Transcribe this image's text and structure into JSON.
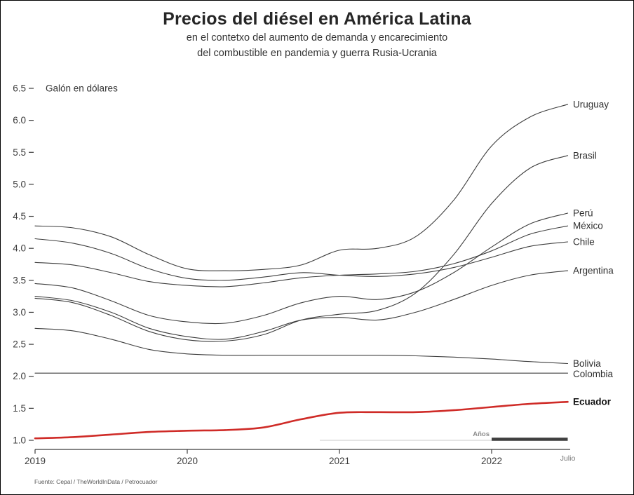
{
  "header": {
    "title": "Precios del diésel en América Latina",
    "subtitle_line1": "en el contetxo del aumento de demanda y encarecimiento",
    "subtitle_line2": "del combustible en pandemia y guerra Rusia-Ucrania"
  },
  "footer": {
    "source": "Fuente: Cepal / TheWorldInData / Petrocuador"
  },
  "colors": {
    "line_default": "#3d3d3d",
    "highlight_red": "#cf2b27",
    "axis": "#3c3c3c",
    "annotation_gray": "#c8c8c8"
  },
  "chart_data": {
    "type": "line",
    "title": "Precios del diésel en América Latina",
    "ylabel": "Galón en dólares",
    "xlabel": "Años",
    "grid": false,
    "legend_position": "right-end-labels",
    "ylim": [
      1.0,
      6.5
    ],
    "y_ticks": [
      1.0,
      1.5,
      2.0,
      2.5,
      3.0,
      3.5,
      4.0,
      4.5,
      5.0,
      5.5,
      6.0,
      6.5
    ],
    "x_ticks": [
      {
        "label": "2019",
        "t": 2019
      },
      {
        "label": "2020",
        "t": 2020
      },
      {
        "label": "2021",
        "t": 2021
      },
      {
        "label": "2022",
        "t": 2022
      },
      {
        "label": "Julio",
        "t": 2022.5,
        "minor": true
      }
    ],
    "x": [
      2019,
      2019.25,
      2019.5,
      2019.75,
      2020,
      2020.25,
      2020.5,
      2020.75,
      2021,
      2021.25,
      2021.5,
      2021.75,
      2022,
      2022.25,
      2022.5
    ],
    "series": [
      {
        "name": "Uruguay",
        "values": [
          4.35,
          4.32,
          4.18,
          3.9,
          3.68,
          3.65,
          3.67,
          3.74,
          3.97,
          4.0,
          4.18,
          4.75,
          5.6,
          6.05,
          6.25
        ]
      },
      {
        "name": "Brasil",
        "values": [
          3.22,
          3.15,
          2.95,
          2.7,
          2.57,
          2.55,
          2.65,
          2.88,
          2.97,
          3.03,
          3.3,
          3.9,
          4.7,
          5.25,
          5.45
        ]
      },
      {
        "name": "Perú",
        "values": [
          3.45,
          3.38,
          3.18,
          2.95,
          2.85,
          2.83,
          2.95,
          3.15,
          3.25,
          3.2,
          3.32,
          3.62,
          4.02,
          4.38,
          4.55
        ]
      },
      {
        "name": "México",
        "values": [
          3.78,
          3.74,
          3.62,
          3.48,
          3.42,
          3.4,
          3.46,
          3.54,
          3.58,
          3.6,
          3.64,
          3.76,
          3.96,
          4.22,
          4.35
        ]
      },
      {
        "name": "Chile",
        "values": [
          4.15,
          4.08,
          3.92,
          3.68,
          3.53,
          3.5,
          3.55,
          3.62,
          3.58,
          3.56,
          3.6,
          3.7,
          3.86,
          4.03,
          4.1
        ]
      },
      {
        "name": "Argentina",
        "values": [
          3.25,
          3.18,
          3.0,
          2.75,
          2.62,
          2.58,
          2.7,
          2.88,
          2.92,
          2.88,
          3.0,
          3.2,
          3.42,
          3.58,
          3.65
        ]
      },
      {
        "name": "Bolivia",
        "values": [
          2.75,
          2.71,
          2.58,
          2.42,
          2.35,
          2.33,
          2.33,
          2.33,
          2.33,
          2.33,
          2.32,
          2.3,
          2.27,
          2.23,
          2.2
        ]
      },
      {
        "name": "Colombia",
        "values": [
          2.05,
          2.05,
          2.05,
          2.05,
          2.05,
          2.05,
          2.05,
          2.05,
          2.05,
          2.05,
          2.05,
          2.05,
          2.05,
          2.05,
          2.05
        ]
      },
      {
        "name": "Ecuador",
        "values": [
          1.03,
          1.05,
          1.09,
          1.13,
          1.15,
          1.16,
          1.2,
          1.33,
          1.43,
          1.44,
          1.44,
          1.47,
          1.52,
          1.57,
          1.6
        ],
        "highlight": true
      }
    ]
  }
}
